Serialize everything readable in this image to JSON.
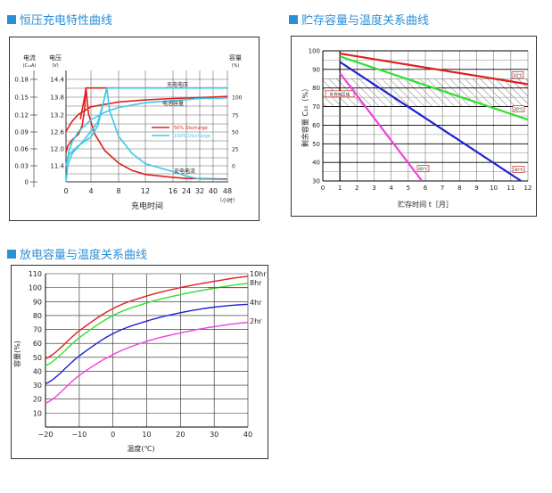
{
  "titles": [
    "恒压充电特性曲线",
    "贮存容量与温度关系曲线",
    "放电容量与温度关系曲线"
  ],
  "colors": {
    "title": "#2b8fd6",
    "red": "#e0201c",
    "cyan": "#3cc8e8",
    "green": "#30e030",
    "blue": "#2020d0",
    "magenta": "#f040e0"
  },
  "chart_data": [
    {
      "type": "line",
      "title": "恒压充电特性曲线",
      "xlabel": "充电时间",
      "xunit": "（小时）",
      "x_ticks": [
        "0",
        "4",
        "8",
        "12",
        "16",
        "24",
        "32",
        "40",
        "48"
      ],
      "left_axis1": {
        "label": "电流",
        "unit": "(C₁₀A)",
        "ticks": [
          "0.18",
          "0.15",
          "0.12",
          "0.09",
          "0.06",
          "0.03",
          "0"
        ]
      },
      "left_axis2": {
        "label": "电压",
        "unit": "(V)",
        "ticks": [
          "14.4",
          "13.8",
          "13.2",
          "12.6",
          "12.0",
          "11.4"
        ]
      },
      "right_axis": {
        "label": "容量",
        "unit": "(%)",
        "ticks": [
          "100",
          "75",
          "50",
          "25",
          "0"
        ]
      },
      "annotations": [
        "充电电压",
        "电池容量",
        "充电电流"
      ],
      "legend": [
        {
          "name": "50% Discharge",
          "color": "#e0201c"
        },
        {
          "name": "100% Discharge",
          "color": "#3cc8e8"
        }
      ],
      "series": [
        {
          "name": "50% Discharge voltage (V)",
          "axis": "voltage",
          "color": "#e0201c",
          "points": [
            [
              0,
              11.85
            ],
            [
              0.3,
              12.1
            ],
            [
              1,
              12.3
            ],
            [
              2,
              12.5
            ],
            [
              2.6,
              12.8
            ],
            [
              3,
              13.4
            ],
            [
              3.2,
              14.1
            ],
            [
              48,
              14.1
            ]
          ]
        },
        {
          "name": "50% Discharge capacity (%)",
          "axis": "capacity",
          "color": "#e0201c",
          "points": [
            [
              0,
              50
            ],
            [
              1,
              65
            ],
            [
              2,
              75
            ],
            [
              4,
              86
            ],
            [
              8,
              93
            ],
            [
              12,
              96
            ],
            [
              16,
              98
            ],
            [
              32,
              99.5
            ],
            [
              48,
              101
            ]
          ]
        },
        {
          "name": "50% Discharge current (C10A)",
          "axis": "current",
          "color": "#e0201c",
          "points": [
            [
              2.3,
              0.11
            ],
            [
              3,
              0.15
            ],
            [
              3.2,
              0.165
            ],
            [
              3.6,
              0.12
            ],
            [
              4.5,
              0.085
            ],
            [
              6,
              0.055
            ],
            [
              8,
              0.033
            ],
            [
              10,
              0.02
            ],
            [
              12,
              0.013
            ],
            [
              16,
              0.008
            ],
            [
              24,
              0.006
            ],
            [
              48,
              0.005
            ]
          ]
        },
        {
          "name": "100% Discharge voltage (V)",
          "axis": "voltage",
          "color": "#3cc8e8",
          "points": [
            [
              0,
              11.4
            ],
            [
              0.5,
              11.8
            ],
            [
              2,
              12.1
            ],
            [
              4,
              12.4
            ],
            [
              5,
              12.8
            ],
            [
              5.8,
              13.6
            ],
            [
              6.3,
              14.1
            ],
            [
              48,
              14.1
            ]
          ]
        },
        {
          "name": "100% Discharge capacity (%)",
          "axis": "capacity",
          "color": "#3cc8e8",
          "points": [
            [
              0,
              0
            ],
            [
              0.5,
              22
            ],
            [
              1,
              35
            ],
            [
              2,
              50
            ],
            [
              4,
              67
            ],
            [
              6,
              78
            ],
            [
              8,
              85
            ],
            [
              12,
              92
            ],
            [
              16,
              95
            ],
            [
              32,
              98
            ],
            [
              48,
              99
            ]
          ]
        },
        {
          "name": "100% Discharge current (C10A)",
          "axis": "current",
          "color": "#3cc8e8",
          "points": [
            [
              0,
              0
            ],
            [
              0.3,
              0.03
            ],
            [
              1,
              0.05
            ],
            [
              3,
              0.075
            ],
            [
              5,
              0.105
            ],
            [
              5.8,
              0.14
            ],
            [
              6.3,
              0.165
            ],
            [
              6.7,
              0.125
            ],
            [
              8,
              0.08
            ],
            [
              10,
              0.05
            ],
            [
              12,
              0.032
            ],
            [
              16,
              0.018
            ],
            [
              24,
              0.01
            ],
            [
              32,
              0.005
            ],
            [
              48,
              0.004
            ]
          ]
        }
      ]
    },
    {
      "type": "line",
      "title": "贮存容量与温度关系曲线",
      "xlabel": "贮存时间 t［月］",
      "ylabel": "剩余容量 C₁₀（%）",
      "xlim": [
        0,
        12
      ],
      "ylim": [
        30,
        100
      ],
      "x_ticks": [
        "0",
        "1",
        "2",
        "3",
        "4",
        "5",
        "6",
        "7",
        "8",
        "9",
        "10",
        "11",
        "12"
      ],
      "y_ticks": [
        "30",
        "40",
        "50",
        "60",
        "70",
        "80",
        "90",
        "100"
      ],
      "band": {
        "label": "补充电区域",
        "from": 70,
        "to": 85
      },
      "series": [
        {
          "name": "10℃",
          "color": "#e0201c",
          "points": [
            [
              1,
              98.5
            ],
            [
              12,
              82
            ]
          ]
        },
        {
          "name": "20℃",
          "color": "#30e030",
          "points": [
            [
              1,
              97
            ],
            [
              12,
              63
            ]
          ]
        },
        {
          "name": "30℃",
          "color": "#2020d0",
          "points": [
            [
              1,
              94
            ],
            [
              11.6,
              30
            ]
          ]
        },
        {
          "name": "40℃",
          "color": "#f040e0",
          "points": [
            [
              1,
              88
            ],
            [
              5.8,
              30
            ]
          ]
        }
      ]
    },
    {
      "type": "line",
      "title": "放电容量与温度关系曲线",
      "xlabel": "温度(℃)",
      "ylabel": "容量(%)",
      "xlim": [
        -20,
        40
      ],
      "ylim": [
        0,
        110
      ],
      "x_ticks": [
        "−20",
        "−10",
        "0",
        "10",
        "20",
        "30",
        "40"
      ],
      "y_ticks": [
        "10",
        "20",
        "30",
        "40",
        "50",
        "60",
        "70",
        "80",
        "90",
        "100",
        "110"
      ],
      "series": [
        {
          "name": "10hr",
          "color": "#e0201c",
          "x": [
            -20,
            -10,
            0,
            10,
            20,
            30,
            40
          ],
          "values": [
            49,
            69,
            85,
            94,
            100,
            104.5,
            108
          ]
        },
        {
          "name": "8hr",
          "color": "#30e030",
          "x": [
            -20,
            -10,
            0,
            10,
            20,
            30,
            40
          ],
          "values": [
            44,
            64,
            80,
            89,
            95,
            99.5,
            103
          ]
        },
        {
          "name": "4hr",
          "color": "#2020d0",
          "x": [
            -20,
            -10,
            0,
            10,
            20,
            30,
            40
          ],
          "values": [
            31,
            51,
            67,
            76,
            82,
            86,
            88
          ]
        },
        {
          "name": "2hr",
          "color": "#f040e0",
          "x": [
            -20,
            -10,
            0,
            10,
            20,
            30,
            40
          ],
          "values": [
            17,
            37,
            52,
            61.5,
            67.5,
            72,
            75
          ]
        }
      ]
    }
  ]
}
